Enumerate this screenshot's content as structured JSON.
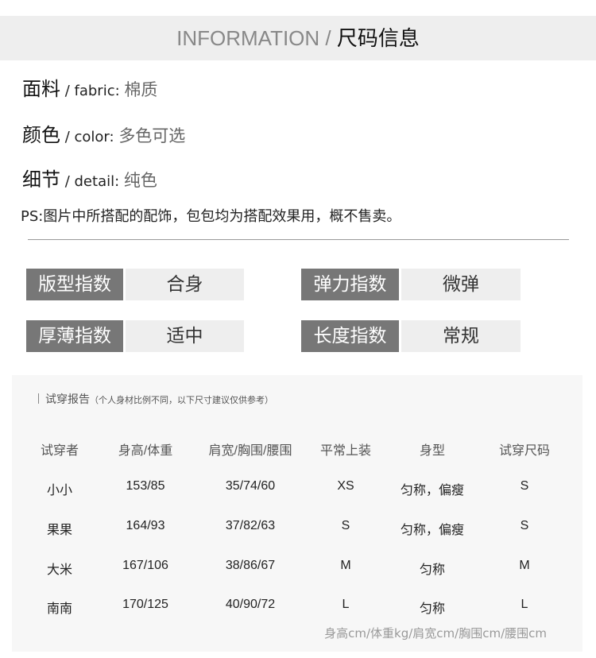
{
  "header": {
    "title_en": "INFORMATION / ",
    "title_cn": "尺码信息"
  },
  "info": [
    {
      "label": "面料",
      "sub": " / fabric: ",
      "value": "棉质"
    },
    {
      "label": "颜色",
      "sub": " / color: ",
      "value": "多色可选"
    },
    {
      "label": "细节",
      "sub": " / detail: ",
      "value": "纯色"
    }
  ],
  "ps": "PS:图片中所搭配的配饰，包包均为搭配效果用，概不售卖。",
  "indices": [
    {
      "label": "版型指数",
      "value": "合身"
    },
    {
      "label": "弹力指数",
      "value": "微弹"
    },
    {
      "label": "厚薄指数",
      "value": "适中"
    },
    {
      "label": "长度指数",
      "value": "常规"
    }
  ],
  "report": {
    "title": "试穿报告",
    "note": "（个人身材比例不同，以下尺寸建议仅供参考）",
    "columns": [
      "试穿者",
      "身高/体重",
      "肩宽/胸围/腰围",
      "平常上装",
      "身型",
      "试穿尺码"
    ],
    "rows": [
      [
        "小小",
        "153/85",
        "35/74/60",
        "XS",
        "匀称，偏瘦",
        "S"
      ],
      [
        "果果",
        "164/93",
        "37/82/63",
        "S",
        "匀称，偏瘦",
        "S"
      ],
      [
        "大米",
        "167/106",
        "38/86/67",
        "M",
        "匀称",
        "M"
      ],
      [
        "南南",
        "170/125",
        "40/90/72",
        "L",
        "匀称",
        "L"
      ]
    ],
    "footnote": "身高cm/体重kg/肩宽cm/胸围cm/腰围cm"
  }
}
